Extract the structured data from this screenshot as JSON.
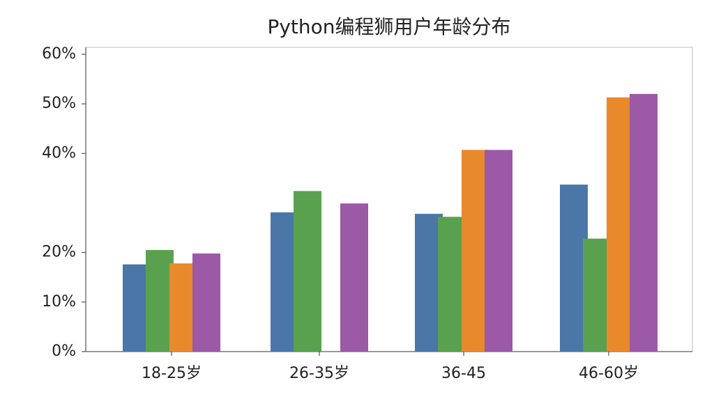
{
  "chart_data": {
    "type": "bar",
    "title": "Python编程狮用户年龄分布",
    "categories": [
      "18-25岁",
      "26-35岁",
      "36-45",
      "46-60岁"
    ],
    "series": [
      {
        "color": "#4a77a8",
        "values": [
          17.6,
          28.1,
          27.8,
          33.7
        ]
      },
      {
        "color": "#59a14f",
        "values": [
          20.5,
          32.4,
          27.2,
          22.8
        ]
      },
      {
        "color": "#e8892b",
        "values": [
          17.8,
          null,
          40.7,
          51.3
        ]
      },
      {
        "color": "#9b59a6",
        "values": [
          19.8,
          29.9,
          40.7,
          52.0
        ]
      }
    ],
    "ylim": [
      0,
      60
    ],
    "yticks": [
      {
        "value": 0,
        "label": "0%"
      },
      {
        "value": 10,
        "label": "10%"
      },
      {
        "value": 20,
        "label": "20%"
      },
      {
        "value": 40,
        "label": "40%"
      },
      {
        "value": 50,
        "label": "50%"
      },
      {
        "value": 60,
        "label": "60%"
      }
    ]
  }
}
